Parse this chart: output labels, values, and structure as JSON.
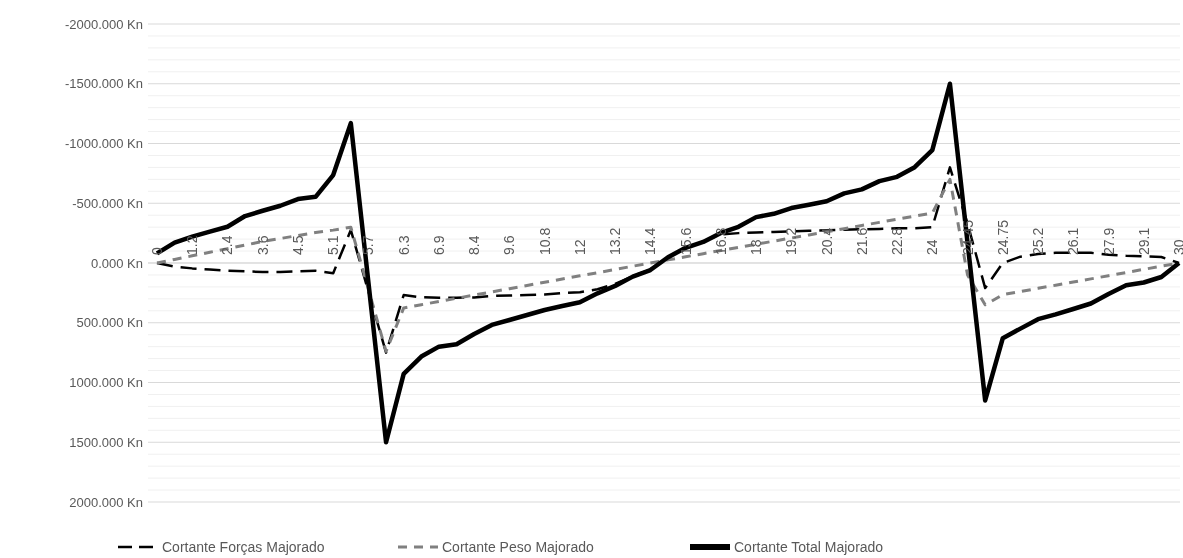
{
  "chart_data": {
    "type": "line",
    "categories": [
      "0",
      null,
      "1.2",
      null,
      "2.4",
      null,
      "3.6",
      null,
      "4.5",
      null,
      "5.1",
      null,
      "5.7",
      null,
      "6.3",
      null,
      "6.9",
      null,
      "8.4",
      null,
      "9.6",
      null,
      "10.8",
      null,
      "12",
      null,
      "13.2",
      null,
      "14.4",
      null,
      "15.6",
      null,
      "16.8",
      null,
      "18",
      null,
      "19.2",
      null,
      "20.4",
      null,
      "21.6",
      null,
      "22.8",
      null,
      "24",
      null,
      "24.45",
      null,
      "24.75",
      null,
      "25.2",
      null,
      "26.1",
      null,
      "27.9",
      null,
      "29.1",
      null,
      "30"
    ],
    "series": [
      {
        "name": "Cortante Forças Majorado",
        "color": "#000000",
        "line_style": "dashed",
        "values": [
          0,
          30,
          45,
          55,
          65,
          70,
          75,
          75,
          70,
          65,
          85,
          -276,
          240,
          750,
          268,
          287,
          290,
          290,
          288,
          276,
          272,
          268,
          264,
          251,
          245,
          220,
          175,
          110,
          55,
          -48,
          -127,
          -180,
          -240,
          -250,
          -255,
          -260,
          -265,
          -270,
          -275,
          -278,
          -282,
          -285,
          -290,
          -290,
          -300,
          -800,
          -330,
          210,
          0,
          -53,
          -75,
          -85,
          -85,
          -85,
          -70,
          -60,
          -55,
          -50,
          0
        ]
      },
      {
        "name": "Cortante Peso Majorado",
        "color": "#808080",
        "line_style": "dotted",
        "values": [
          0,
          -30,
          -60,
          -90,
          -120,
          -150,
          -180,
          -205,
          -230,
          -255,
          -275,
          -300,
          220,
          740,
          376,
          349,
          322,
          295,
          269,
          242,
          215,
          188,
          161,
          134,
          107,
          81,
          54,
          27,
          0,
          -26,
          -52,
          -78,
          -105,
          -131,
          -157,
          -183,
          -209,
          -235,
          -261,
          -287,
          -314,
          -340,
          -366,
          -392,
          -418,
          -700,
          100,
          350,
          265,
          239,
          212,
          186,
          159,
          133,
          106,
          80,
          53,
          27,
          0
        ]
      },
      {
        "name": "Cortante Total Majorado",
        "color": "#000000",
        "line_style": "solid",
        "values": [
          -80,
          -170,
          -220,
          -262,
          -303,
          -393,
          -437,
          -479,
          -535,
          -554,
          -736,
          -1170,
          165,
          1500,
          928,
          783,
          700,
          680,
          594,
          518,
          477,
          435,
          393,
          360,
          329,
          254,
          192,
          114,
          59,
          -48,
          -127,
          -176,
          -252,
          -303,
          -384,
          -412,
          -460,
          -488,
          -517,
          -583,
          -616,
          -685,
          -721,
          -802,
          -944,
          -1500,
          -170,
          1150,
          629,
          549,
          470,
          430,
          385,
          339,
          259,
          186,
          163,
          117,
          0
        ]
      }
    ],
    "ylim": [
      2000,
      -2000
    ],
    "yticks": [
      {
        "value": -2000,
        "label": "-2000.000 Kn"
      },
      {
        "value": -1900,
        "label": null
      },
      {
        "value": -1800,
        "label": null
      },
      {
        "value": -1700,
        "label": null
      },
      {
        "value": -1600,
        "label": null
      },
      {
        "value": -1500,
        "label": "-1500.000 Kn"
      },
      {
        "value": -1400,
        "label": null
      },
      {
        "value": -1300,
        "label": null
      },
      {
        "value": -1200,
        "label": null
      },
      {
        "value": -1100,
        "label": null
      },
      {
        "value": -1000,
        "label": "-1000.000 Kn"
      },
      {
        "value": -900,
        "label": null
      },
      {
        "value": -800,
        "label": null
      },
      {
        "value": -700,
        "label": null
      },
      {
        "value": -600,
        "label": null
      },
      {
        "value": -500,
        "label": "-500.000 Kn"
      },
      {
        "value": -400,
        "label": null
      },
      {
        "value": -300,
        "label": null
      },
      {
        "value": -200,
        "label": null
      },
      {
        "value": -100,
        "label": null
      },
      {
        "value": 0,
        "label": "0.000 Kn"
      },
      {
        "value": 100,
        "label": null
      },
      {
        "value": 200,
        "label": null
      },
      {
        "value": 300,
        "label": null
      },
      {
        "value": 400,
        "label": null
      },
      {
        "value": 500,
        "label": "500.000 Kn"
      },
      {
        "value": 600,
        "label": null
      },
      {
        "value": 700,
        "label": null
      },
      {
        "value": 800,
        "label": null
      },
      {
        "value": 900,
        "label": null
      },
      {
        "value": 1000,
        "label": "1000.000 Kn"
      },
      {
        "value": 1100,
        "label": null
      },
      {
        "value": 1200,
        "label": null
      },
      {
        "value": 1300,
        "label": null
      },
      {
        "value": 1400,
        "label": null
      },
      {
        "value": 1500,
        "label": "1500.000 Kn"
      },
      {
        "value": 1600,
        "label": null
      },
      {
        "value": 1700,
        "label": null
      },
      {
        "value": 1800,
        "label": null
      },
      {
        "value": 1900,
        "label": null
      },
      {
        "value": 2000,
        "label": "2000.000 Kn"
      }
    ],
    "grid": "y",
    "legend": "bottom"
  }
}
